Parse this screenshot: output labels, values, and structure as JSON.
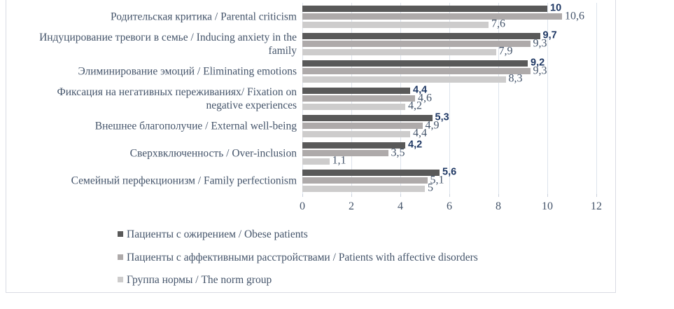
{
  "chart_data": {
    "type": "bar",
    "orientation": "horizontal",
    "categories": [
      [
        "Родительская критика / Parental criticism"
      ],
      [
        "Индуцирование тревоги в семье / Inducing anxiety in the",
        "family"
      ],
      [
        "Элиминирование эмоций / Eliminating emotions"
      ],
      [
        "Фиксация на негативных переживаниях/ Fixation on",
        "negative experiences"
      ],
      [
        "Внешнее благополучие / External well-being"
      ],
      [
        "Сверхвключенность / Over-inclusion"
      ],
      [
        "Семейный перфекционизм / Family perfectionism"
      ]
    ],
    "series": [
      {
        "name": "Пациенты с ожирением / Obese patients",
        "color": "#595959",
        "values": [
          10,
          9.7,
          9.2,
          4.4,
          5.3,
          4.2,
          5.6
        ],
        "labels": [
          "10",
          "9,7",
          "9,2",
          "4,4",
          "5,3",
          "4,2",
          "5,6"
        ],
        "label_bold": true
      },
      {
        "name": "Пациенты с аффективными расстройствами / Patients with affective disorders",
        "color": "#aeaaaa",
        "values": [
          10.6,
          9.3,
          9.3,
          4.6,
          4.9,
          3.5,
          5.1
        ],
        "labels": [
          "10,6",
          "9,3",
          "9,3",
          "4,6",
          "4,9",
          "3,5",
          "5,1"
        ],
        "label_bold": false
      },
      {
        "name": "Группа нормы / The norm group",
        "color": "#cdcccc",
        "values": [
          7.6,
          7.9,
          8.3,
          4.2,
          4.4,
          1.1,
          5
        ],
        "labels": [
          "7,6",
          "7,9",
          "8,3",
          "4,2",
          "4,4",
          "1,1",
          "5"
        ],
        "label_bold": false
      }
    ],
    "xlim": [
      0,
      12
    ],
    "x_ticks": [
      "0",
      "2",
      "4",
      "6",
      "8",
      "10",
      "12"
    ],
    "grid": true,
    "legend_position": "bottom-left",
    "title": "",
    "xlabel": "",
    "ylabel": ""
  },
  "colors": {
    "bold_value_label": "#1f3864",
    "value_label": "#44546a",
    "axis_text": "#44546a",
    "gridline": "#dde3ec",
    "frame_border": "#d9dbe3"
  }
}
